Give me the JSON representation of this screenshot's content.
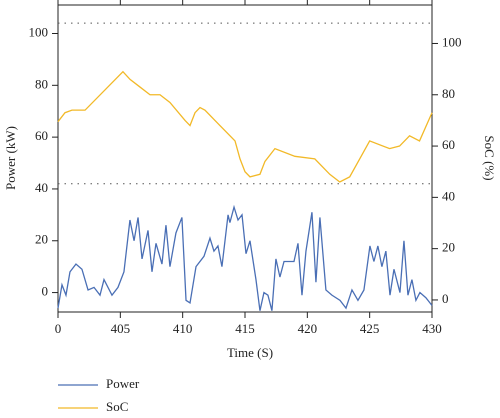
{
  "chart_data": {
    "type": "line",
    "x_label": "Time (S)",
    "y_label": "Power (kW)",
    "y2_label": "SoC (%)",
    "xlim": [
      400,
      430
    ],
    "xticks": [
      {
        "value": 400,
        "label": "0"
      },
      405,
      410,
      415,
      420,
      425,
      430
    ],
    "ylim": [
      -7.5,
      111
    ],
    "yticks": [
      0,
      20,
      40,
      60,
      80,
      100
    ],
    "y2lim": [
      -4.7,
      115
    ],
    "y2ticks": [
      0,
      20,
      40,
      60,
      80,
      100
    ],
    "reference_lines": [
      42,
      104
    ],
    "legend": "bottom-left",
    "series": [
      {
        "name": "Power",
        "color": "#4a6fb5",
        "x": [
          400,
          400.32,
          400.64,
          400.96,
          401.44,
          401.92,
          402.41,
          402.89,
          403.37,
          403.69,
          404.33,
          404.81,
          405.29,
          405.77,
          406.1,
          406.42,
          406.74,
          407.22,
          407.54,
          407.86,
          408.34,
          408.66,
          408.98,
          409.46,
          409.94,
          410.27,
          410.59,
          411.07,
          411.71,
          412.19,
          412.51,
          412.83,
          413.15,
          413.64,
          413.79,
          414.12,
          414.44,
          414.76,
          415.08,
          415.4,
          415.88,
          416.2,
          416.52,
          416.84,
          417.16,
          417.48,
          417.8,
          418.13,
          418.61,
          418.93,
          419.25,
          419.57,
          419.89,
          420.37,
          420.69,
          421.01,
          421.49,
          421.97,
          422.62,
          423.1,
          423.58,
          424.06,
          424.54,
          425.02,
          425.34,
          425.66,
          425.98,
          426.3,
          426.63,
          426.95,
          427.43,
          427.75,
          428.07,
          428.39,
          428.71,
          429.03,
          429.51,
          430
        ],
        "values": [
          -6,
          3,
          -1,
          8,
          11,
          9,
          1,
          2,
          -1,
          5,
          -1,
          2,
          8,
          28,
          20,
          29,
          13,
          24,
          8,
          19,
          11,
          26,
          10,
          23,
          29,
          -3,
          -4,
          10,
          14,
          21,
          16,
          18,
          10,
          30,
          27,
          33,
          28,
          30,
          15,
          20,
          5,
          -7,
          0,
          -1,
          -7,
          13,
          6,
          12,
          12,
          12,
          19,
          -1,
          16,
          31,
          4,
          29,
          1,
          -1,
          -3,
          -6,
          1,
          -3,
          1,
          18,
          12,
          18,
          10,
          16,
          -1,
          9,
          0,
          20,
          -1,
          5,
          -3,
          0,
          -2,
          -5
        ]
      },
      {
        "name": "SoC",
        "color": "#f2b928",
        "axis": "y2",
        "x": [
          400,
          400.56,
          401.12,
          402.17,
          405.21,
          405.78,
          406.58,
          407.38,
          408.18,
          408.98,
          410.19,
          410.59,
          410.99,
          411.39,
          411.79,
          412.99,
          414.2,
          414.6,
          415.0,
          415.4,
          416.2,
          416.6,
          417.4,
          419.0,
          420.6,
          421.8,
          422.6,
          423.4,
          424.2,
          425.0,
          426.6,
          427.4,
          428.2,
          429.0,
          430
        ],
        "values": [
          69.5,
          73,
          74,
          74,
          89,
          86,
          83,
          80,
          80,
          77,
          70,
          68,
          73,
          75,
          74,
          68,
          62,
          55,
          50,
          48,
          49,
          54,
          59,
          56,
          55,
          49,
          46,
          48,
          55,
          62,
          59,
          60,
          64,
          62,
          73
        ]
      }
    ]
  }
}
